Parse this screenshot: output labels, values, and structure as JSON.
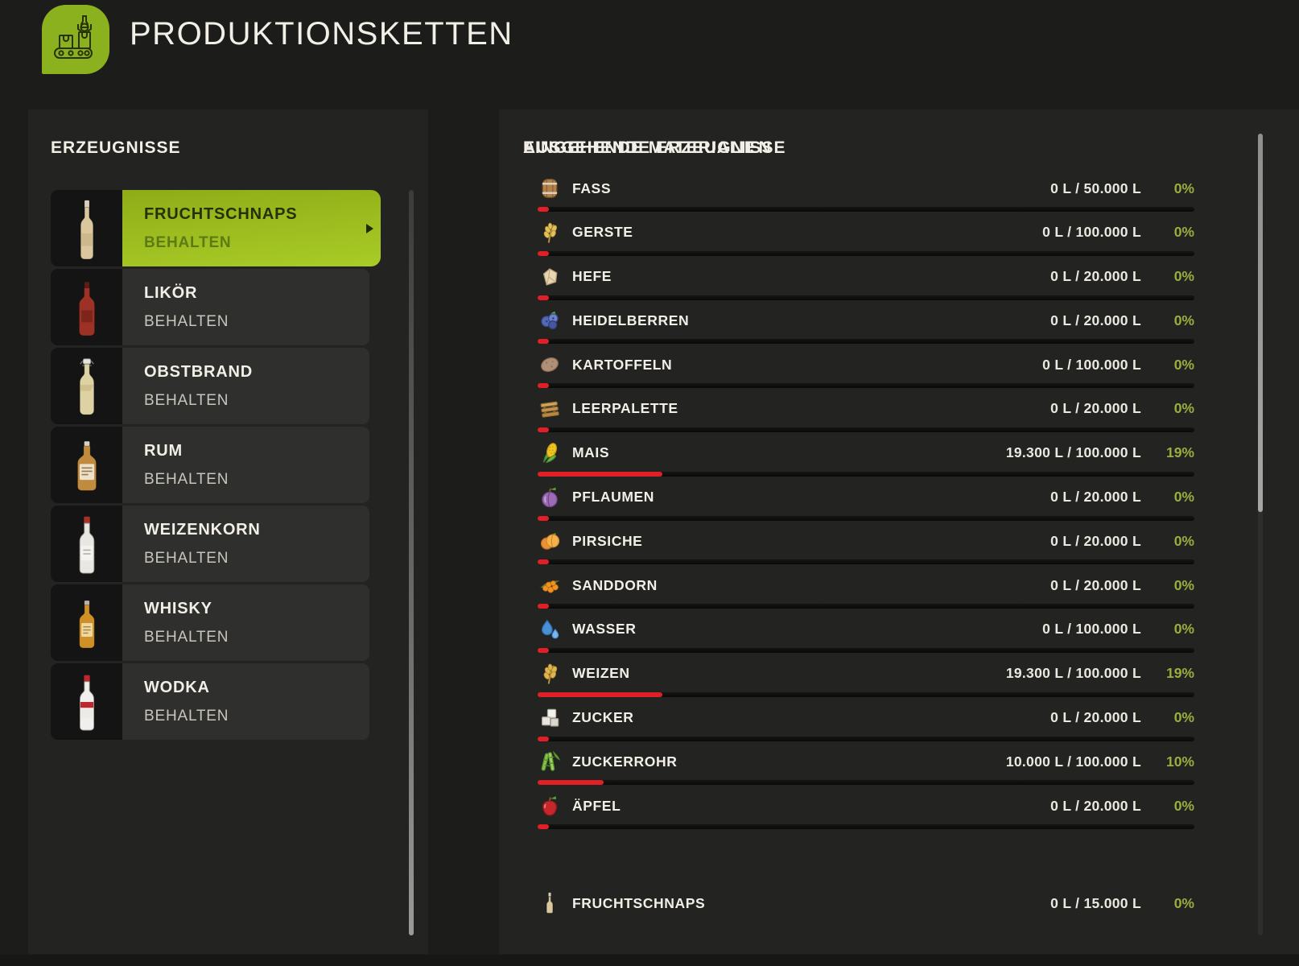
{
  "header": {
    "title": "PRODUKTIONSKETTEN"
  },
  "colors": {
    "accent_green": "#8cb11f",
    "selected_gradient_top": "#8fac18",
    "selected_gradient_bottom": "#a9cc26",
    "progress_red": "#e01f26",
    "percent_green": "#98ae3d"
  },
  "products": {
    "section_title": "ERZEUGNISSE",
    "items": [
      {
        "name": "FRUCHTSCHNAPS",
        "action": "BEHALTEN",
        "selected": true
      },
      {
        "name": "LIKÖR",
        "action": "BEHALTEN",
        "selected": false
      },
      {
        "name": "OBSTBRAND",
        "action": "BEHALTEN",
        "selected": false
      },
      {
        "name": "RUM",
        "action": "BEHALTEN",
        "selected": false
      },
      {
        "name": "WEIZENKORN",
        "action": "BEHALTEN",
        "selected": false
      },
      {
        "name": "WHISKY",
        "action": "BEHALTEN",
        "selected": false
      },
      {
        "name": "WODKA",
        "action": "BEHALTEN",
        "selected": false
      }
    ]
  },
  "materials": {
    "section_title": "EINGEHENDE MATERIALIEN",
    "rows": [
      {
        "icon": "barrel",
        "name": "FASS",
        "amount": "0 L / 50.000 L",
        "percent": "0%",
        "fill": 0
      },
      {
        "icon": "barley",
        "name": "GERSTE",
        "amount": "0 L / 100.000 L",
        "percent": "0%",
        "fill": 0
      },
      {
        "icon": "yeast",
        "name": "HEFE",
        "amount": "0 L / 20.000 L",
        "percent": "0%",
        "fill": 0
      },
      {
        "icon": "blueberries",
        "name": "HEIDELBERREN",
        "amount": "0 L / 20.000 L",
        "percent": "0%",
        "fill": 0
      },
      {
        "icon": "potato",
        "name": "KARTOFFELN",
        "amount": "0 L / 100.000 L",
        "percent": "0%",
        "fill": 0
      },
      {
        "icon": "pallet",
        "name": "LEERPALETTE",
        "amount": "0 L / 20.000 L",
        "percent": "0%",
        "fill": 0
      },
      {
        "icon": "corn",
        "name": "MAIS",
        "amount": "19.300 L / 100.000 L",
        "percent": "19%",
        "fill": 19
      },
      {
        "icon": "plum",
        "name": "PFLAUMEN",
        "amount": "0 L / 20.000 L",
        "percent": "0%",
        "fill": 0
      },
      {
        "icon": "peach",
        "name": "PIRSICHE",
        "amount": "0 L / 20.000 L",
        "percent": "0%",
        "fill": 0
      },
      {
        "icon": "seabuckthorn",
        "name": "SANDDORN",
        "amount": "0 L / 20.000 L",
        "percent": "0%",
        "fill": 0
      },
      {
        "icon": "water",
        "name": "WASSER",
        "amount": "0 L / 100.000 L",
        "percent": "0%",
        "fill": 0
      },
      {
        "icon": "wheat",
        "name": "WEIZEN",
        "amount": "19.300 L / 100.000 L",
        "percent": "19%",
        "fill": 19
      },
      {
        "icon": "sugar",
        "name": "ZUCKER",
        "amount": "0 L / 20.000 L",
        "percent": "0%",
        "fill": 0
      },
      {
        "icon": "sugarcane",
        "name": "ZUCKERROHR",
        "amount": "10.000 L / 100.000 L",
        "percent": "10%",
        "fill": 10
      },
      {
        "icon": "apple",
        "name": "ÄPFEL",
        "amount": "0 L / 20.000 L",
        "percent": "0%",
        "fill": 0
      }
    ]
  },
  "outgoing": {
    "section_title": "AUSGEHENDE ERZEUGNISSE",
    "rows": [
      {
        "icon": "bottle",
        "name": "FRUCHTSCHNAPS",
        "amount": "0 L / 15.000 L",
        "percent": "0%",
        "fill": 0
      }
    ]
  }
}
